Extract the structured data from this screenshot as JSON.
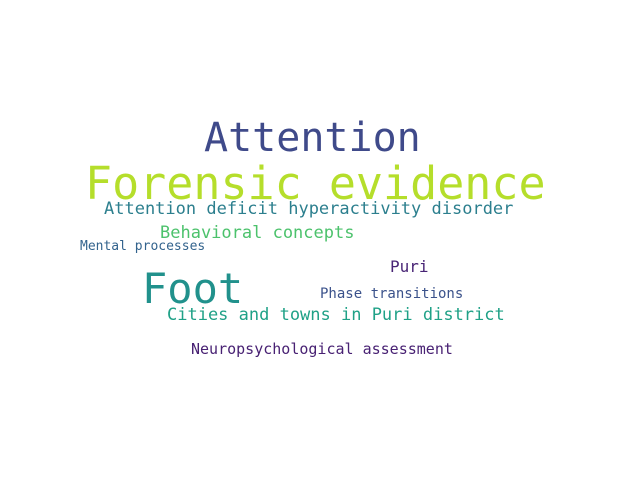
{
  "words": [
    {
      "text": "Attention",
      "color": "#3f4a8a"
    },
    {
      "text": "Forensic evidence",
      "color": "#b5de2b"
    },
    {
      "text": "Attention deficit hyperactivity disorder",
      "color": "#2c7f8e"
    },
    {
      "text": "Behavioral concepts",
      "color": "#4cc26c"
    },
    {
      "text": "Mental processes",
      "color": "#33638d"
    },
    {
      "text": "Puri",
      "color": "#482475"
    },
    {
      "text": "Foot",
      "color": "#21918c"
    },
    {
      "text": "Phase transitions",
      "color": "#3b528b"
    },
    {
      "text": "Cities and towns in Puri district",
      "color": "#1fa187"
    },
    {
      "text": "Neuropsychological assessment",
      "color": "#482173"
    }
  ]
}
